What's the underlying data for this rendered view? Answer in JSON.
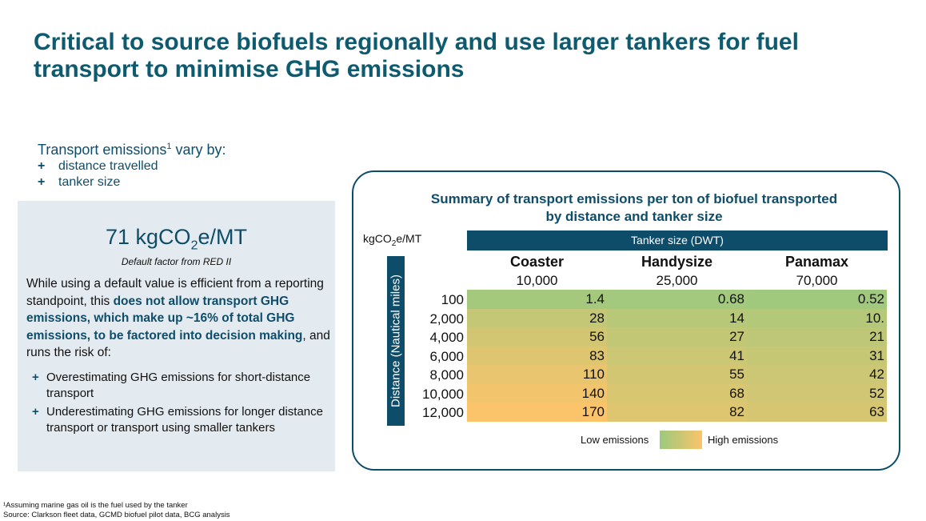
{
  "title": "Critical to source biofuels regionally and use larger tankers for fuel transport to minimise GHG emissions",
  "intro": {
    "heading": "Transport emissions",
    "heading_sup": "1",
    "heading_suffix": " vary by:",
    "items": [
      "distance travelled",
      "tanker size"
    ]
  },
  "left_box": {
    "value_prefix": "71 kgCO",
    "value_sub": "2",
    "value_suffix": "e/MT",
    "factor_label": "Default factor from RED II",
    "para_part1": "While using a default value is efficient from a reporting standpoint, this ",
    "para_bold": "does not allow transport GHG emissions, which make up ~16% of total GHG emissions, to be factored into decision making",
    "para_part2": ", and runs the risk of:",
    "risks": [
      "Overestimating GHG emissions for short-distance transport",
      "Underestimating GHG emissions for longer distance transport or transport using smaller tankers"
    ]
  },
  "chart_data": {
    "type": "table",
    "title": "Summary of transport emissions per ton of biofuel transported by distance and tanker size",
    "unit_prefix": "kgCO",
    "unit_sub": "2",
    "unit_suffix": "e/MT",
    "column_group": "Tanker size (DWT)",
    "row_axis": "Distance (Nautical miles)",
    "columns": [
      {
        "name": "Coaster",
        "dwt": "10,000"
      },
      {
        "name": "Handysize",
        "dwt": "25,000"
      },
      {
        "name": "Panamax",
        "dwt": "70,000"
      }
    ],
    "rows": [
      "100",
      "2,000",
      "4,000",
      "6,000",
      "8,000",
      "10,000",
      "12,000"
    ],
    "values": [
      [
        "1.4",
        "0.68",
        "0.52"
      ],
      [
        "28",
        "14",
        "10."
      ],
      [
        "56",
        "27",
        "21"
      ],
      [
        "83",
        "41",
        "31"
      ],
      [
        "110",
        "55",
        "42"
      ],
      [
        "140",
        "68",
        "52"
      ],
      [
        "170",
        "82",
        "63"
      ]
    ],
    "legend": {
      "low": "Low emissions",
      "high": "High emissions"
    },
    "colors": {
      "low": "#9cc97e",
      "high": "#fbc46a"
    }
  },
  "footnotes": {
    "note": "¹Assuming marine gas oil is the fuel used by the tanker",
    "source": "Source: Clarkson fleet data, GCMD biofuel pilot data, BCG analysis"
  }
}
